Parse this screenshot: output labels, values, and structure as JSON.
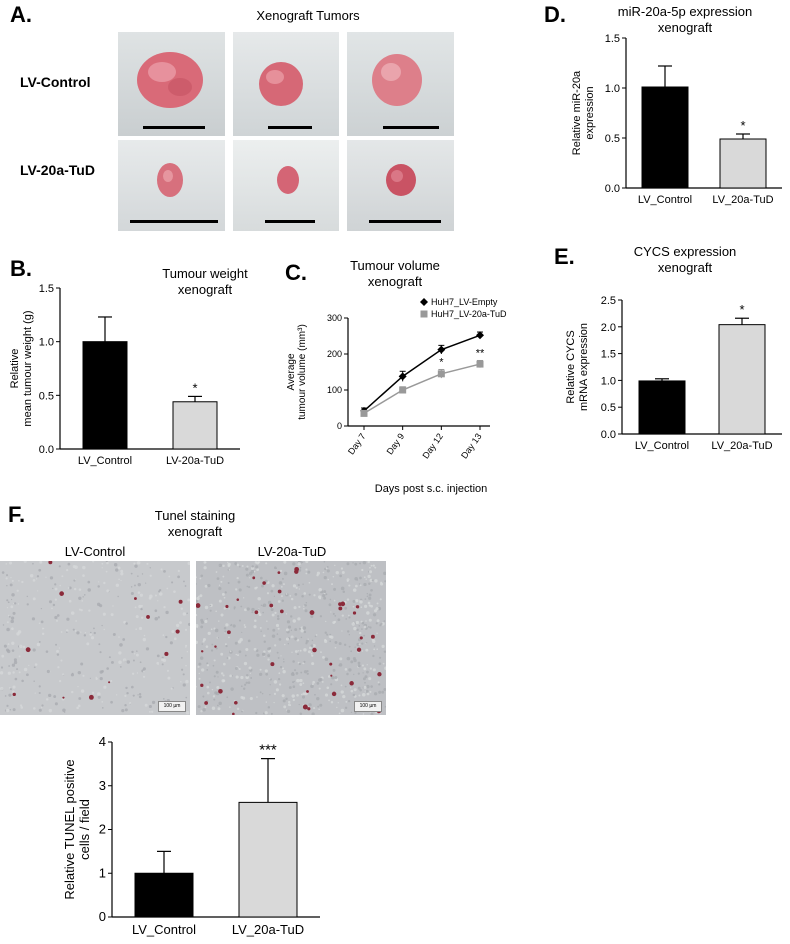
{
  "figure": {
    "panel_a": {
      "letter": "A.",
      "title": "Xenograft  Tumors",
      "row_labels": [
        "LV-Control",
        "LV-20a-TuD"
      ]
    },
    "panel_b": {
      "letter": "B."
    },
    "panel_c": {
      "letter": "C."
    },
    "panel_d": {
      "letter": "D."
    },
    "panel_e": {
      "letter": "E."
    },
    "panel_f": {
      "letter": "F.",
      "title_line1": "Tunel staining",
      "title_line2": "xenograft",
      "image_labels": [
        "LV-Control",
        "LV-20a-TuD"
      ],
      "scalebar_labels": [
        "100 µm",
        "100 µm"
      ]
    }
  },
  "chart_data": [
    {
      "id": "B",
      "type": "bar",
      "title": "Tumour weight",
      "subtitle": "xenograft",
      "ylabel_lines": [
        "Relative",
        "mean tumour weight (g)"
      ],
      "categories": [
        "LV_Control",
        "LV-20a-TuD"
      ],
      "values": [
        1.0,
        0.44
      ],
      "errors": [
        0.23,
        0.05
      ],
      "colors": [
        "#000000",
        "#d9d9d9"
      ],
      "ylim": [
        0,
        1.5
      ],
      "yticks": [
        "0.0",
        "0.5",
        "1.0",
        "1.5"
      ],
      "annotations": [
        "",
        "*"
      ]
    },
    {
      "id": "C",
      "type": "line",
      "title": "Tumour volume",
      "subtitle": "xenograft",
      "ylabel_lines": [
        "Average",
        "tumour volume (mm³)"
      ],
      "xlabel": "Days post s.c. injection",
      "categories": [
        "Day 7",
        "Day 9",
        "Day 12",
        "Day 13"
      ],
      "ylim": [
        0,
        300
      ],
      "yticks": [
        "0",
        "100",
        "200",
        "300"
      ],
      "series": [
        {
          "name": "HuH7_LV-Empty",
          "values": [
            42,
            138,
            212,
            252
          ],
          "errors": [
            8,
            14,
            12,
            9
          ],
          "color": "#000000",
          "marker": "diamond"
        },
        {
          "name": "HuH7_LV-20a-TuD",
          "values": [
            35,
            100,
            145,
            172
          ],
          "errors": [
            6,
            9,
            12,
            10
          ],
          "color": "#999999",
          "marker": "square"
        }
      ],
      "annotations": [
        "",
        "",
        "*",
        "**"
      ]
    },
    {
      "id": "D",
      "type": "bar",
      "title": "miR-20a-5p  expression",
      "subtitle": "xenograft",
      "ylabel_lines": [
        "Relative miR-20a",
        "expression"
      ],
      "categories": [
        "LV_Control",
        "LV_20a-TuD"
      ],
      "values": [
        1.01,
        0.49
      ],
      "errors": [
        0.21,
        0.05
      ],
      "colors": [
        "#000000",
        "#d9d9d9"
      ],
      "ylim": [
        0,
        1.5
      ],
      "yticks": [
        "0.0",
        "0.5",
        "1.0",
        "1.5"
      ],
      "annotations": [
        "",
        "*"
      ]
    },
    {
      "id": "E",
      "type": "bar",
      "title": "CYCS expression",
      "subtitle": "xenograft",
      "ylabel_lines": [
        "Relative CYCS",
        "mRNA expression"
      ],
      "categories": [
        "LV_Control",
        "LV_20a-TuD"
      ],
      "values": [
        0.99,
        2.04
      ],
      "errors": [
        0.04,
        0.12
      ],
      "colors": [
        "#000000",
        "#d9d9d9"
      ],
      "ylim": [
        0,
        2.5
      ],
      "yticks": [
        "0.0",
        "0.5",
        "1.0",
        "1.5",
        "2.0",
        "2.5"
      ],
      "annotations": [
        "",
        "*"
      ]
    },
    {
      "id": "F",
      "type": "bar",
      "ylabel_lines": [
        "Relative TUNEL positive",
        "cells / field"
      ],
      "categories": [
        "LV_Control",
        "LV_20a-TuD"
      ],
      "values": [
        1.0,
        2.62
      ],
      "errors": [
        0.5,
        1.0
      ],
      "colors": [
        "#000000",
        "#d9d9d9"
      ],
      "ylim": [
        0,
        4
      ],
      "yticks": [
        "0",
        "1",
        "2",
        "3",
        "4"
      ],
      "annotations": [
        "",
        "***"
      ]
    }
  ]
}
